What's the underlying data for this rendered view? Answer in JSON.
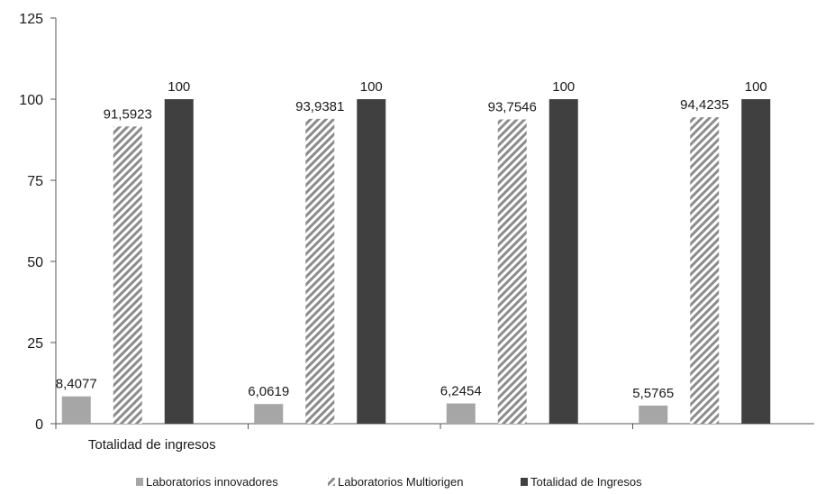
{
  "chart_data": {
    "type": "bar",
    "categories": [
      "Totalidad de ingresos",
      "",
      "",
      ""
    ],
    "series": [
      {
        "name": "Laboratorios innovadores",
        "values": [
          8.4077,
          6.0619,
          6.2454,
          5.5765
        ],
        "labels": [
          "8,4077",
          "6,0619",
          "6,2454",
          "5,5765"
        ],
        "color": "#a6a6a6",
        "pattern": "solid"
      },
      {
        "name": "Laboratorios Multiorigen",
        "values": [
          91.5923,
          93.9381,
          93.7546,
          94.4235
        ],
        "labels": [
          "91,5923",
          "93,9381",
          "93,7546",
          "94,4235"
        ],
        "color": "#8c8c8c",
        "pattern": "diagonal-hatch"
      },
      {
        "name": "Totalidad de Ingresos",
        "values": [
          100,
          100,
          100,
          100
        ],
        "labels": [
          "100",
          "100",
          "100",
          "100"
        ],
        "color": "#404040",
        "pattern": "solid"
      }
    ],
    "ylim": [
      0,
      125
    ],
    "yticks": [
      0,
      25,
      50,
      75,
      100,
      125
    ],
    "grid": false,
    "legend": "bottom"
  }
}
